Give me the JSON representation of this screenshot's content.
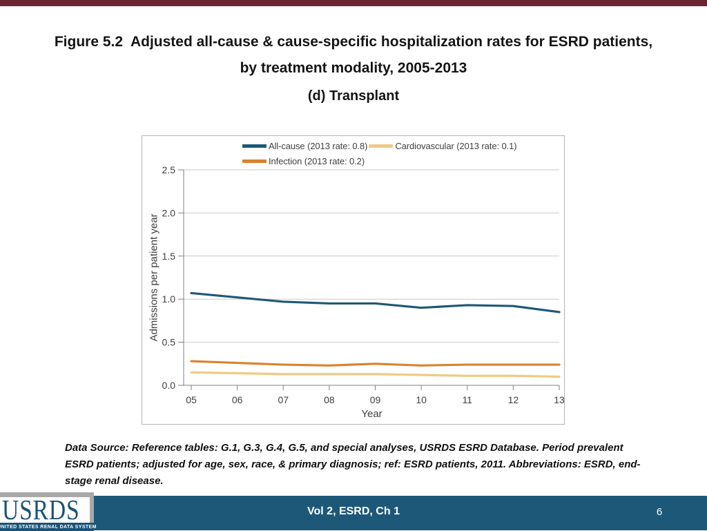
{
  "slide": {
    "title": {
      "line1": "Figure 5.2  Adjusted all-cause & cause-specific hospitalization rates for ESRD patients,",
      "line2": "by treatment modality, 2005-2013",
      "line3": "(d) Transplant"
    },
    "datasource": "Data Source: Reference tables: G.1, G.3, G.4, G.5, and special analyses, USRDS ESRD Database. Period prevalent ESRD patients; adjusted for age, sex, race, & primary diagnosis; ref: ESRD patients, 2011. Abbreviations: ESRD, end-stage renal disease.",
    "footer": {
      "center_label": "Vol 2, ESRD, Ch 1",
      "page_number": "6"
    },
    "logo": {
      "wordmark": "USRDS",
      "tagline": "UNITED STATES RENAL DATA SYSTEM"
    },
    "colors": {
      "top_bar": "#6c2533",
      "footer_bar": "#1d5878",
      "logo_blue": "#1b5276"
    }
  },
  "chart_data": {
    "type": "line",
    "x": [
      2005,
      2006,
      2007,
      2008,
      2009,
      2010,
      2011,
      2012,
      2013
    ],
    "xticklabels": [
      "05",
      "06",
      "07",
      "08",
      "09",
      "10",
      "11",
      "12",
      "13"
    ],
    "series": [
      {
        "name": "All-cause",
        "legend_label": "All-cause (2013 rate: 0.8)",
        "color": "#1e5876",
        "values": [
          1.07,
          1.02,
          0.97,
          0.95,
          0.95,
          0.9,
          0.93,
          0.92,
          0.85
        ]
      },
      {
        "name": "Infection",
        "legend_label": "Infection (2013 rate: 0.2)",
        "color": "#d9822f",
        "values": [
          0.28,
          0.26,
          0.24,
          0.23,
          0.25,
          0.23,
          0.24,
          0.24,
          0.24
        ]
      },
      {
        "name": "Cardiovascular",
        "legend_label": "Cardiovascular (2013 rate: 0.1)",
        "color": "#efcb82",
        "values": [
          0.15,
          0.14,
          0.13,
          0.13,
          0.13,
          0.12,
          0.11,
          0.11,
          0.1
        ]
      }
    ],
    "xlabel": "Year",
    "ylabel": "Admissions per patient year",
    "ylim": [
      0,
      2.5
    ],
    "yticks": [
      0.0,
      0.5,
      1.0,
      1.5,
      2.0,
      2.5
    ],
    "grid": true,
    "legend_position": "top"
  }
}
